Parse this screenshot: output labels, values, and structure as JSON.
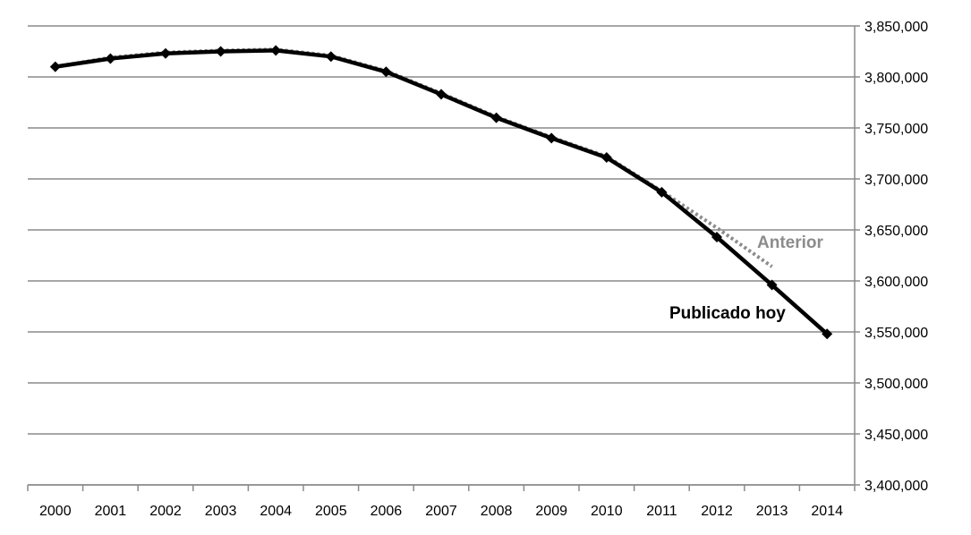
{
  "chart_data": {
    "type": "line",
    "title": "",
    "xlabel": "",
    "ylabel": "",
    "x": [
      2000,
      2001,
      2002,
      2003,
      2004,
      2005,
      2006,
      2007,
      2008,
      2009,
      2010,
      2011,
      2012,
      2013,
      2014
    ],
    "x_tick_labels": [
      "2000",
      "2001",
      "2002",
      "2003",
      "2004",
      "2005",
      "2006",
      "2007",
      "2008",
      "2009",
      "2010",
      "2011",
      "2012",
      "2013",
      "2014"
    ],
    "ylim": [
      3400000,
      3850000
    ],
    "y_ticks": [
      3400000,
      3450000,
      3500000,
      3550000,
      3600000,
      3650000,
      3700000,
      3750000,
      3800000,
      3850000
    ],
    "y_tick_labels": [
      "3,400,000",
      "3,450,000",
      "3,500,000",
      "3,550,000",
      "3,600,000",
      "3,650,000",
      "3,700,000",
      "3,750,000",
      "3,800,000",
      "3,850,000"
    ],
    "y_axis_position": "right",
    "grid": true,
    "series": [
      {
        "name": "Anterior",
        "color": "#8c8c8c",
        "style": "dotted",
        "x": [
          2000,
          2001,
          2002,
          2003,
          2004,
          2005,
          2006,
          2007,
          2008,
          2009,
          2010,
          2011,
          2012,
          2013
        ],
        "values": [
          3810000,
          3819000,
          3824000,
          3826000,
          3827000,
          3821000,
          3806000,
          3784000,
          3761000,
          3741000,
          3722000,
          3688000,
          3652000,
          3614000
        ]
      },
      {
        "name": "Publicado hoy",
        "color": "#000000",
        "style": "solid",
        "markers": "diamond",
        "x": [
          2000,
          2001,
          2002,
          2003,
          2004,
          2005,
          2006,
          2007,
          2008,
          2009,
          2010,
          2011,
          2012,
          2013,
          2014
        ],
        "values": [
          3810000,
          3818000,
          3823000,
          3825000,
          3826000,
          3820000,
          3805000,
          3783000,
          3760000,
          3740000,
          3721000,
          3687000,
          3643000,
          3596000,
          3548000
        ]
      }
    ],
    "annotations": [
      {
        "text": "Anterior",
        "series": "Anterior",
        "color": "#8c8c8c"
      },
      {
        "text": "Publicado hoy",
        "series": "Publicado hoy",
        "color": "#000000"
      }
    ]
  }
}
